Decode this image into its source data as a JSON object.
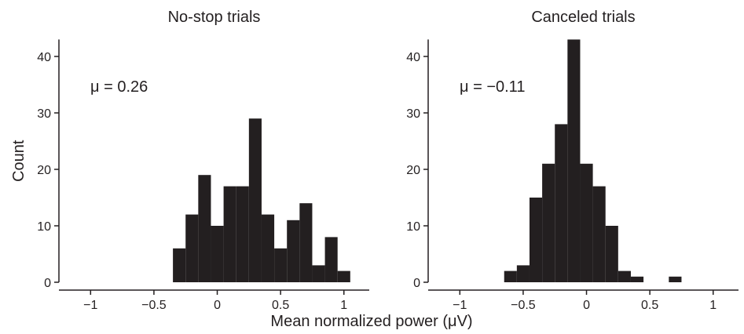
{
  "chart_data": [
    {
      "type": "histogram",
      "title": "No-stop trials",
      "ylabel": "Count",
      "xlabel": "Mean normalized power (μV)",
      "annotation": "μ = 0.26",
      "bins": [
        -0.35,
        -0.25,
        -0.15,
        -0.05,
        0.05,
        0.15,
        0.25,
        0.35,
        0.45,
        0.55,
        0.65,
        0.75,
        0.85,
        0.95,
        1.05
      ],
      "values": [
        6,
        12,
        19,
        10,
        17,
        17,
        29,
        12,
        6,
        11,
        14,
        3,
        8,
        2
      ],
      "color": "#231f20",
      "xlim": [
        -1.25,
        1.2
      ],
      "ylim": [
        0,
        43
      ],
      "xticks": [
        {
          "value": -1,
          "label": "−1"
        },
        {
          "value": -0.5,
          "label": "−0.5"
        },
        0,
        0.5,
        1
      ],
      "yticks": [
        0,
        10,
        20,
        30,
        40
      ]
    },
    {
      "type": "histogram",
      "title": "Canceled trials",
      "annotation": "μ = −0.11",
      "bins": [
        -0.65,
        -0.55,
        -0.45,
        -0.35,
        -0.25,
        -0.15,
        -0.05,
        0.05,
        0.15,
        0.25,
        0.35,
        0.45,
        0.55,
        0.65,
        0.75
      ],
      "values": [
        2,
        3,
        15,
        21,
        28,
        43,
        21,
        17,
        10,
        2,
        1,
        0,
        0,
        1
      ],
      "color": "#231f20",
      "xlim": [
        -1.25,
        1.2
      ],
      "ylim": [
        0,
        43
      ],
      "xticks": [
        {
          "value": -1,
          "label": "−1"
        },
        {
          "value": -0.5,
          "label": "−0.5"
        },
        0,
        0.5,
        1
      ],
      "yticks": [
        0,
        10,
        20,
        30,
        40
      ]
    }
  ]
}
